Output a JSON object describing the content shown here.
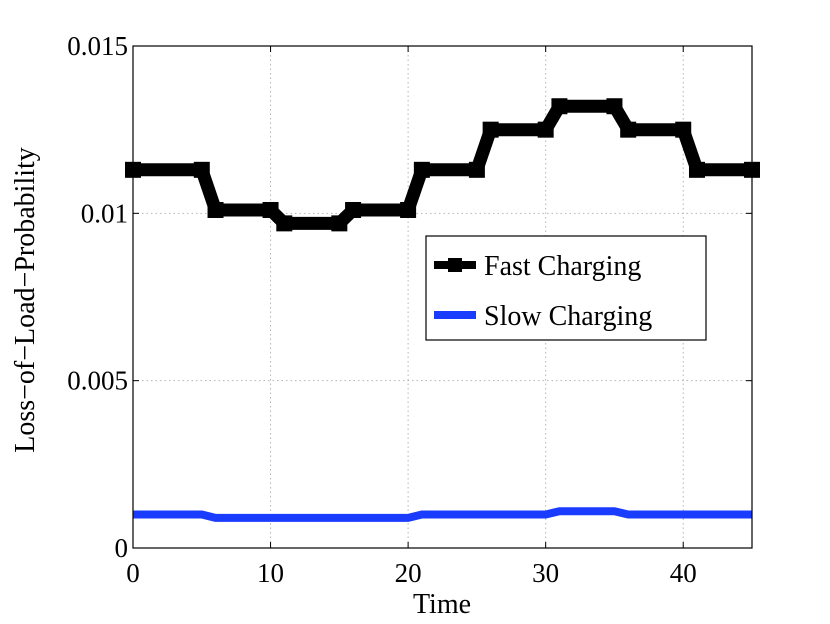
{
  "chart_data": {
    "type": "line",
    "title": "",
    "xlabel": "Time",
    "ylabel": "Loss−of−Load−Probability",
    "xlim": [
      0,
      45
    ],
    "ylim": [
      0,
      0.015
    ],
    "xticks": [
      0,
      10,
      20,
      30,
      40
    ],
    "xtick_labels": [
      "0",
      "10",
      "20",
      "30",
      "40"
    ],
    "yticks": [
      0,
      0.005,
      0.01,
      0.015
    ],
    "ytick_labels": [
      "0",
      "0.005",
      "0.01",
      "0.015"
    ],
    "grid": true,
    "legend_position": "center-right",
    "series": [
      {
        "name": "Fast Charging",
        "color": "#000000",
        "marker": "square",
        "x": [
          0,
          5,
          6,
          10,
          11,
          15,
          16,
          20,
          21,
          25,
          26,
          30,
          31,
          35,
          36,
          40,
          41,
          45
        ],
        "values": [
          0.0113,
          0.0113,
          0.0101,
          0.0101,
          0.0097,
          0.0097,
          0.0101,
          0.0101,
          0.0113,
          0.0113,
          0.0125,
          0.0125,
          0.0132,
          0.0132,
          0.0125,
          0.0125,
          0.0113,
          0.0113
        ]
      },
      {
        "name": "Slow Charging",
        "color": "#1a3cff",
        "marker": "none",
        "x": [
          0,
          5,
          6,
          10,
          11,
          15,
          16,
          20,
          21,
          25,
          26,
          30,
          31,
          35,
          36,
          40,
          41,
          45
        ],
        "values": [
          0.001,
          0.001,
          0.0009,
          0.0009,
          0.0009,
          0.0009,
          0.0009,
          0.0009,
          0.001,
          0.001,
          0.001,
          0.001,
          0.0011,
          0.0011,
          0.001,
          0.001,
          0.001,
          0.001
        ]
      }
    ]
  }
}
